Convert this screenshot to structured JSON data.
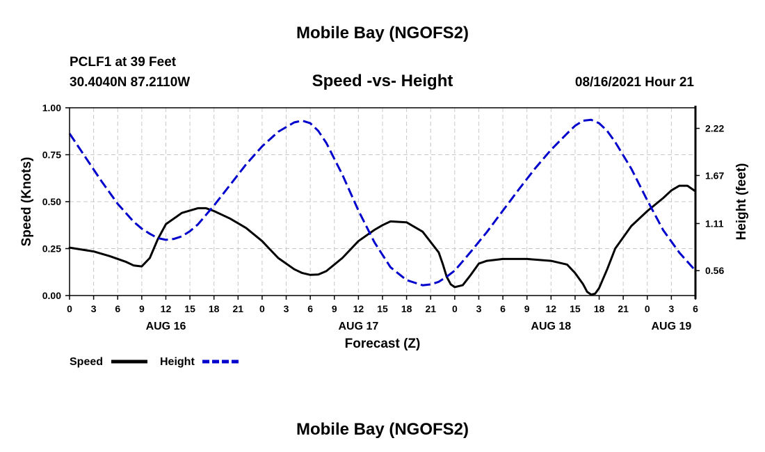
{
  "page": {
    "top_title": "Mobile Bay (NGOFS2)",
    "bottom_title": "Mobile Bay (NGOFS2)",
    "station": "PCLF1 at 39 Feet",
    "coords": "30.4040N  87.2110W",
    "datetime": "08/16/2021 Hour 21"
  },
  "colors": {
    "speed": "#000000",
    "height": "#0000cc",
    "grid": "#c8c8c8"
  },
  "chart_data": {
    "type": "line",
    "title": "Speed -vs- Height",
    "xlabel": "Forecast (Z)",
    "ylabel": "Speed (Knots)",
    "ylabel_right": "Height (feet)",
    "x_unit": "hours since AUG 16 00Z",
    "xlim": [
      0,
      78
    ],
    "ylim": [
      0,
      1.0
    ],
    "ylim_right": [
      0.27,
      2.46
    ],
    "x_ticks": [
      0,
      3,
      6,
      9,
      12,
      15,
      18,
      21,
      24,
      27,
      30,
      33,
      36,
      39,
      42,
      45,
      48,
      51,
      54,
      57,
      60,
      63,
      66,
      69,
      72,
      75,
      78
    ],
    "x_tick_labels": [
      "0",
      "3",
      "6",
      "9",
      "12",
      "15",
      "18",
      "21",
      "0",
      "3",
      "6",
      "9",
      "12",
      "15",
      "18",
      "21",
      "0",
      "3",
      "6",
      "9",
      "12",
      "15",
      "18",
      "21",
      "0",
      "3",
      "6"
    ],
    "y_ticks": [
      0,
      0.25,
      0.5,
      0.75,
      1.0
    ],
    "y_tick_labels": [
      "0.00",
      "0.25",
      "0.50",
      "0.75",
      "1.00"
    ],
    "y_right_ticks": [
      0.56,
      1.11,
      1.67,
      2.22
    ],
    "y_right_tick_labels": [
      "0.56",
      "1.11",
      "1.67",
      "2.22"
    ],
    "day_labels": [
      {
        "x": 12,
        "label": "AUG 16"
      },
      {
        "x": 36,
        "label": "AUG 17"
      },
      {
        "x": 60,
        "label": "AUG 18"
      },
      {
        "x": 75,
        "label": "AUG 19"
      }
    ],
    "series": [
      {
        "name": "Speed",
        "axis": "left",
        "style": "solid",
        "x": [
          0,
          3,
          5,
          7,
          8,
          9,
          10,
          11,
          12,
          14,
          16,
          17,
          18,
          20,
          22,
          24,
          26,
          28,
          29,
          30,
          31,
          32,
          34,
          36,
          38,
          39,
          40,
          42,
          44,
          46,
          46.5,
          47,
          47.5,
          48,
          49,
          50,
          51,
          52,
          54,
          57,
          60,
          62,
          63,
          64,
          64.5,
          65,
          65.5,
          66,
          67,
          68,
          70,
          72,
          74,
          75,
          76,
          77,
          78
        ],
        "values": [
          0.255,
          0.235,
          0.21,
          0.18,
          0.16,
          0.155,
          0.2,
          0.3,
          0.38,
          0.44,
          0.465,
          0.465,
          0.45,
          0.41,
          0.36,
          0.29,
          0.2,
          0.14,
          0.12,
          0.11,
          0.112,
          0.13,
          0.2,
          0.29,
          0.35,
          0.375,
          0.395,
          0.39,
          0.34,
          0.23,
          0.17,
          0.1,
          0.06,
          0.045,
          0.055,
          0.11,
          0.17,
          0.185,
          0.195,
          0.195,
          0.185,
          0.165,
          0.12,
          0.06,
          0.02,
          0.005,
          0.01,
          0.04,
          0.14,
          0.25,
          0.37,
          0.45,
          0.52,
          0.56,
          0.585,
          0.585,
          0.555
        ]
      },
      {
        "name": "Height",
        "axis": "right",
        "style": "dashed",
        "x": [
          0,
          2,
          4,
          6,
          8,
          9,
          10,
          11,
          12,
          13,
          14,
          15,
          16,
          18,
          20,
          22,
          24,
          26,
          28,
          29,
          30,
          31,
          32,
          34,
          36,
          38,
          40,
          42,
          44,
          45,
          46,
          47,
          48,
          49,
          50,
          52,
          54,
          56,
          58,
          60,
          62,
          63,
          64,
          65,
          66,
          67,
          68,
          70,
          72,
          74,
          76,
          78
        ],
        "values": [
          2.16,
          1.88,
          1.6,
          1.34,
          1.13,
          1.05,
          0.99,
          0.94,
          0.92,
          0.93,
          0.96,
          1.02,
          1.1,
          1.32,
          1.56,
          1.8,
          2.01,
          2.18,
          2.29,
          2.31,
          2.28,
          2.19,
          2.05,
          1.68,
          1.26,
          0.89,
          0.6,
          0.45,
          0.39,
          0.4,
          0.43,
          0.49,
          0.56,
          0.67,
          0.78,
          1.01,
          1.26,
          1.51,
          1.75,
          1.97,
          2.16,
          2.25,
          2.31,
          2.32,
          2.28,
          2.19,
          2.06,
          1.75,
          1.38,
          1.03,
          0.77,
          0.56
        ]
      }
    ],
    "legend": [
      {
        "label": "Speed",
        "series": "Speed"
      },
      {
        "label": "Height",
        "series": "Height"
      }
    ],
    "legend_position": "bottom-left",
    "grid": true
  }
}
